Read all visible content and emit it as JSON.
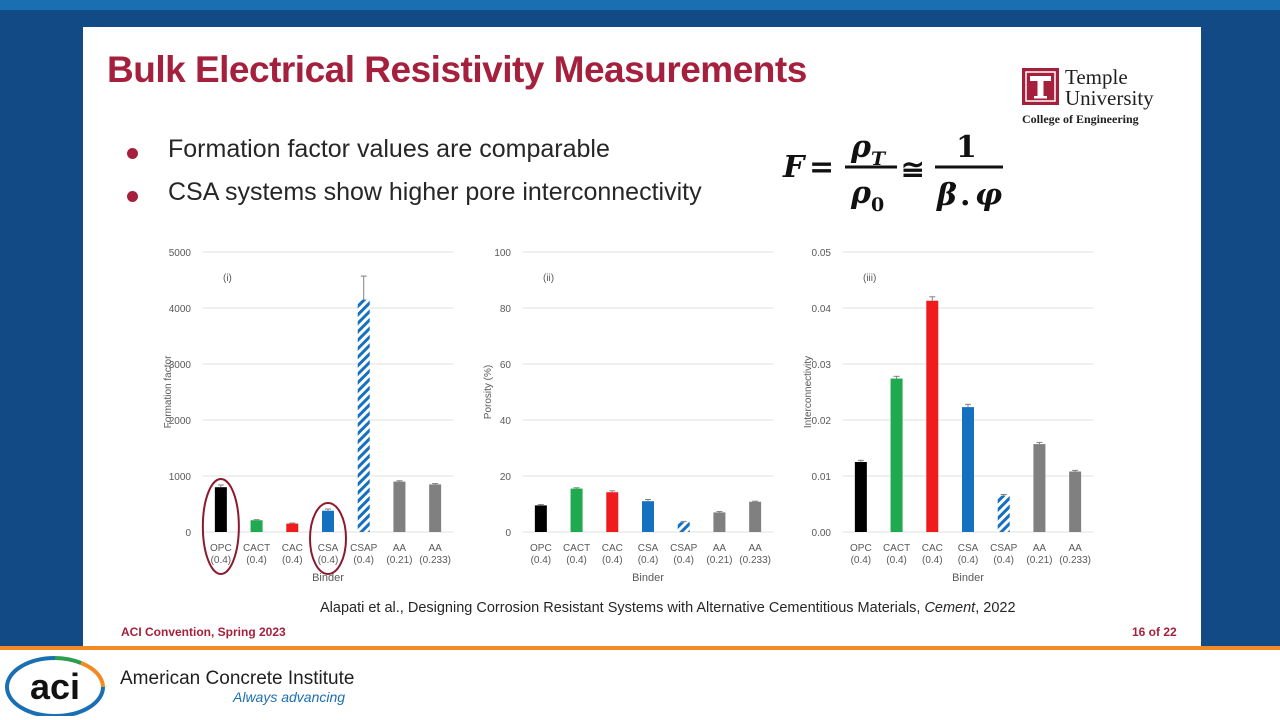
{
  "slide": {
    "title": "Bulk Electrical Resistivity Measurements",
    "bullets": [
      "Formation factor values are comparable",
      "CSA systems show higher pore interconnectivity"
    ],
    "formula_text": "F = ρT / ρ0 ≅ 1 / β.φ",
    "reference_prefix": "Alapati et al., Designing Corrosion Resistant Systems with Alternative Cementitious Materials, ",
    "reference_journal": "Cement",
    "reference_suffix": ", 2022",
    "footer_left": "ACI Convention, Spring 2023",
    "footer_right": "16 of 22"
  },
  "university": {
    "line1": "Temple",
    "line2": "University",
    "line3": "College of Engineering"
  },
  "institute": {
    "logo_text": "aci",
    "name": "American Concrete Institute",
    "tagline": "Always advancing"
  },
  "colors": {
    "accent": "#a4203d",
    "OPC": "#000000",
    "CACT": "#1faa4f",
    "CAC": "#ee1c1c",
    "CSA": "#1670c0",
    "CSAP": "#1670c0",
    "AA": "#808080"
  },
  "chart_data": [
    {
      "type": "bar",
      "panel": "(i)",
      "ylabel": "Formation factor",
      "xlabel": "Binder",
      "ylim": [
        0,
        5000
      ],
      "yticks": [
        "0",
        "1000",
        "2000",
        "3000",
        "4000",
        "5000"
      ],
      "categories": [
        "OPC",
        "CACT",
        "CAC",
        "CSA",
        "CSAP",
        "AA",
        "AA"
      ],
      "category_sub": [
        "(0.4)",
        "(0.4)",
        "(0.4)",
        "(0.4)",
        "(0.4)",
        "(0.21)",
        "(0.233)"
      ],
      "values": [
        800,
        210,
        150,
        380,
        4150,
        900,
        850
      ],
      "errors": [
        40,
        10,
        10,
        30,
        420,
        15,
        15
      ],
      "hatched": [
        false,
        false,
        false,
        false,
        true,
        false,
        false
      ],
      "highlighted": [
        "OPC",
        "CSA"
      ]
    },
    {
      "type": "bar",
      "panel": "(ii)",
      "ylabel": "Porosity (%)",
      "xlabel": "Binder",
      "ylim": [
        0,
        100
      ],
      "yticks": [
        "0",
        "20",
        "40",
        "60",
        "80",
        "100"
      ],
      "categories": [
        "OPC",
        "CACT",
        "CAC",
        "CSA",
        "CSAP",
        "AA",
        "AA"
      ],
      "category_sub": [
        "(0.4)",
        "(0.4)",
        "(0.4)",
        "(0.4)",
        "(0.4)",
        "(0.21)",
        "(0.233)"
      ],
      "values": [
        9.5,
        15.5,
        14.2,
        11.0,
        3.5,
        7.0,
        10.8
      ],
      "errors": [
        0.3,
        0.3,
        0.5,
        0.6,
        0.3,
        0.3,
        0.2
      ],
      "hatched": [
        false,
        false,
        false,
        false,
        true,
        false,
        false
      ],
      "highlighted": []
    },
    {
      "type": "bar",
      "panel": "(iii)",
      "ylabel": "Interconnectivity",
      "xlabel": "Binder",
      "ylim": [
        0,
        0.05
      ],
      "yticks": [
        "0.00",
        "0.01",
        "0.02",
        "0.03",
        "0.04",
        "0.05"
      ],
      "categories": [
        "OPC",
        "CACT",
        "CAC",
        "CSA",
        "CSAP",
        "AA",
        "AA"
      ],
      "category_sub": [
        "(0.4)",
        "(0.4)",
        "(0.4)",
        "(0.4)",
        "(0.4)",
        "(0.21)",
        "(0.233)"
      ],
      "values": [
        0.0125,
        0.0274,
        0.0413,
        0.0223,
        0.0065,
        0.0157,
        0.0108
      ],
      "errors": [
        0.0003,
        0.0004,
        0.0007,
        0.0005,
        0.0002,
        0.0003,
        0.0002
      ],
      "hatched": [
        false,
        false,
        false,
        false,
        true,
        false,
        false
      ],
      "highlighted": []
    }
  ]
}
